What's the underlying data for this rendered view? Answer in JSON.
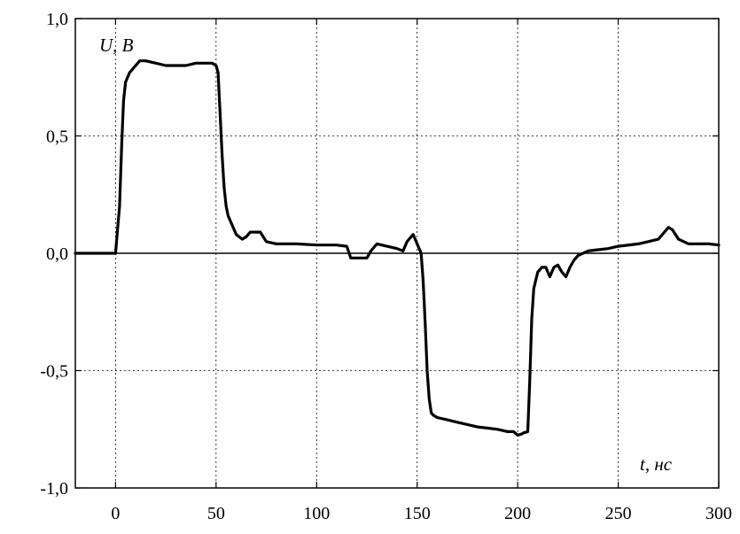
{
  "chart_data": {
    "type": "line",
    "xlabel": "t, нс",
    "ylabel": "U, В",
    "xlim": [
      -20,
      300
    ],
    "ylim": [
      -1.0,
      1.0
    ],
    "grid": true,
    "zero_line": true,
    "x_ticks": [
      0,
      50,
      100,
      150,
      200,
      250,
      300
    ],
    "x_tick_labels": [
      "0",
      "50",
      "100",
      "150",
      "200",
      "250",
      "300"
    ],
    "y_ticks": [
      -1.0,
      -0.5,
      0.0,
      0.5,
      1.0
    ],
    "y_tick_labels": [
      "-1,0",
      "-0,5",
      "0,0",
      "0,5",
      "1,0"
    ],
    "series": [
      {
        "color": "#000000",
        "x": [
          -20,
          -10,
          -1,
          0,
          1,
          2,
          3,
          4,
          5,
          7,
          10,
          12,
          15,
          20,
          25,
          30,
          35,
          40,
          45,
          48,
          50,
          51,
          52,
          53,
          54,
          55,
          56,
          58,
          60,
          63,
          65,
          67,
          70,
          72,
          75,
          80,
          90,
          100,
          110,
          115,
          117,
          120,
          125,
          127,
          130,
          135,
          140,
          143,
          145,
          147,
          148,
          150,
          152,
          153,
          154,
          155,
          156,
          157,
          158,
          160,
          165,
          170,
          175,
          180,
          185,
          190,
          195,
          198,
          200,
          202,
          203,
          205,
          206,
          207,
          208,
          210,
          212,
          214,
          216,
          218,
          220,
          222,
          224,
          226,
          228,
          230,
          235,
          240,
          245,
          250,
          260,
          265,
          270,
          273,
          275,
          277,
          280,
          285,
          290,
          295,
          300
        ],
        "y": [
          0.0,
          0.0,
          0.0,
          0.0,
          0.1,
          0.2,
          0.45,
          0.65,
          0.73,
          0.77,
          0.8,
          0.82,
          0.82,
          0.81,
          0.8,
          0.8,
          0.8,
          0.81,
          0.81,
          0.81,
          0.8,
          0.77,
          0.6,
          0.42,
          0.28,
          0.2,
          0.16,
          0.12,
          0.08,
          0.06,
          0.07,
          0.09,
          0.09,
          0.09,
          0.05,
          0.04,
          0.04,
          0.035,
          0.035,
          0.03,
          -0.02,
          -0.02,
          -0.02,
          0.01,
          0.04,
          0.03,
          0.02,
          0.01,
          0.05,
          0.07,
          0.08,
          0.04,
          0.0,
          -0.12,
          -0.3,
          -0.5,
          -0.62,
          -0.68,
          -0.69,
          -0.7,
          -0.71,
          -0.72,
          -0.73,
          -0.74,
          -0.745,
          -0.75,
          -0.76,
          -0.76,
          -0.775,
          -0.77,
          -0.765,
          -0.76,
          -0.55,
          -0.28,
          -0.15,
          -0.08,
          -0.06,
          -0.06,
          -0.1,
          -0.06,
          -0.05,
          -0.08,
          -0.1,
          -0.06,
          -0.03,
          -0.01,
          0.01,
          0.015,
          0.02,
          0.03,
          0.04,
          0.05,
          0.06,
          0.09,
          0.11,
          0.1,
          0.06,
          0.04,
          0.04,
          0.04,
          0.035
        ]
      }
    ]
  }
}
